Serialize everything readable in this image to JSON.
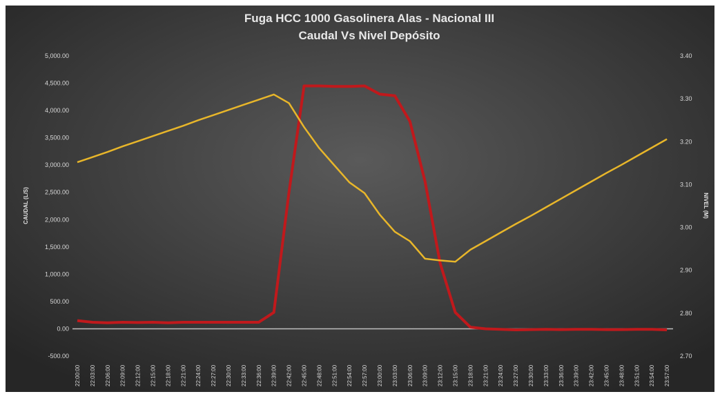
{
  "chart_data": {
    "type": "line",
    "title": "Fuga HCC 1000 Gasolinera Alas - Nacional III",
    "subtitle": "Caudal Vs Nivel Depósito",
    "y_label": "CAUDAL (L/S)",
    "y2_label": "NIVEL (M)",
    "categories": [
      "22:00:00",
      "22:03:00",
      "22:06:00",
      "22:09:00",
      "22:12:00",
      "22:15:00",
      "22:18:00",
      "22:21:00",
      "22:24:00",
      "22:27:00",
      "22:30:00",
      "22:33:00",
      "22:36:00",
      "22:39:00",
      "22:42:00",
      "22:45:00",
      "22:48:00",
      "22:51:00",
      "22:54:00",
      "22:57:00",
      "23:00:00",
      "23:03:00",
      "23:06:00",
      "23:09:00",
      "23:12:00",
      "23:15:00",
      "23:18:00",
      "23:21:00",
      "23:24:00",
      "23:27:00",
      "23:30:00",
      "23:33:00",
      "23:36:00",
      "23:39:00",
      "23:42:00",
      "23:45:00",
      "23:48:00",
      "23:51:00",
      "23:54:00",
      "23:57:00"
    ],
    "series": [
      {
        "name": "Caudal",
        "color": "#c0191c",
        "axis": "y",
        "values": [
          150,
          120,
          110,
          120,
          115,
          120,
          110,
          120,
          120,
          120,
          120,
          120,
          120,
          300,
          2500,
          4450,
          4450,
          4440,
          4440,
          4450,
          4300,
          4270,
          3800,
          2700,
          1200,
          300,
          30,
          0,
          -10,
          -20,
          -15,
          -10,
          -15,
          -10,
          -10,
          -15,
          -15,
          -10,
          -10,
          -20
        ]
      },
      {
        "name": "Nivel",
        "color": "#e8b62a",
        "axis": "y2",
        "values": [
          3.152,
          3.164,
          3.176,
          3.189,
          3.201,
          3.213,
          3.225,
          3.237,
          3.25,
          3.262,
          3.274,
          3.286,
          3.298,
          3.31,
          3.29,
          3.234,
          3.185,
          3.145,
          3.105,
          3.08,
          3.03,
          2.99,
          2.968,
          2.927,
          2.923,
          2.92,
          2.948,
          2.968,
          2.988,
          3.008,
          3.027,
          3.047,
          3.067,
          3.087,
          3.107,
          3.127,
          3.146,
          3.166,
          3.186,
          3.206
        ]
      }
    ],
    "ylim": [
      -500,
      5000
    ],
    "yticks": [
      {
        "value": -500,
        "label": "-500.00"
      },
      {
        "value": 0,
        "label": "0.00"
      },
      {
        "value": 500,
        "label": "500.00"
      },
      {
        "value": 1000,
        "label": "1,000.00"
      },
      {
        "value": 1500,
        "label": "1,500.00"
      },
      {
        "value": 2000,
        "label": "2,000.00"
      },
      {
        "value": 2500,
        "label": "2,500.00"
      },
      {
        "value": 3000,
        "label": "3,000.00"
      },
      {
        "value": 3500,
        "label": "3,500.00"
      },
      {
        "value": 4000,
        "label": "4,000.00"
      },
      {
        "value": 4500,
        "label": "4,500.00"
      },
      {
        "value": 5000,
        "label": "5,000.00"
      }
    ],
    "y2lim": [
      2.7,
      3.4
    ],
    "y2ticks": [
      {
        "value": 2.7,
        "label": "2.70"
      },
      {
        "value": 2.8,
        "label": "2.80"
      },
      {
        "value": 2.9,
        "label": "2.90"
      },
      {
        "value": 3.0,
        "label": "3.00"
      },
      {
        "value": 3.1,
        "label": "3.10"
      },
      {
        "value": 3.2,
        "label": "3.20"
      },
      {
        "value": 3.3,
        "label": "3.30"
      },
      {
        "value": 3.4,
        "label": "3.40"
      }
    ]
  }
}
